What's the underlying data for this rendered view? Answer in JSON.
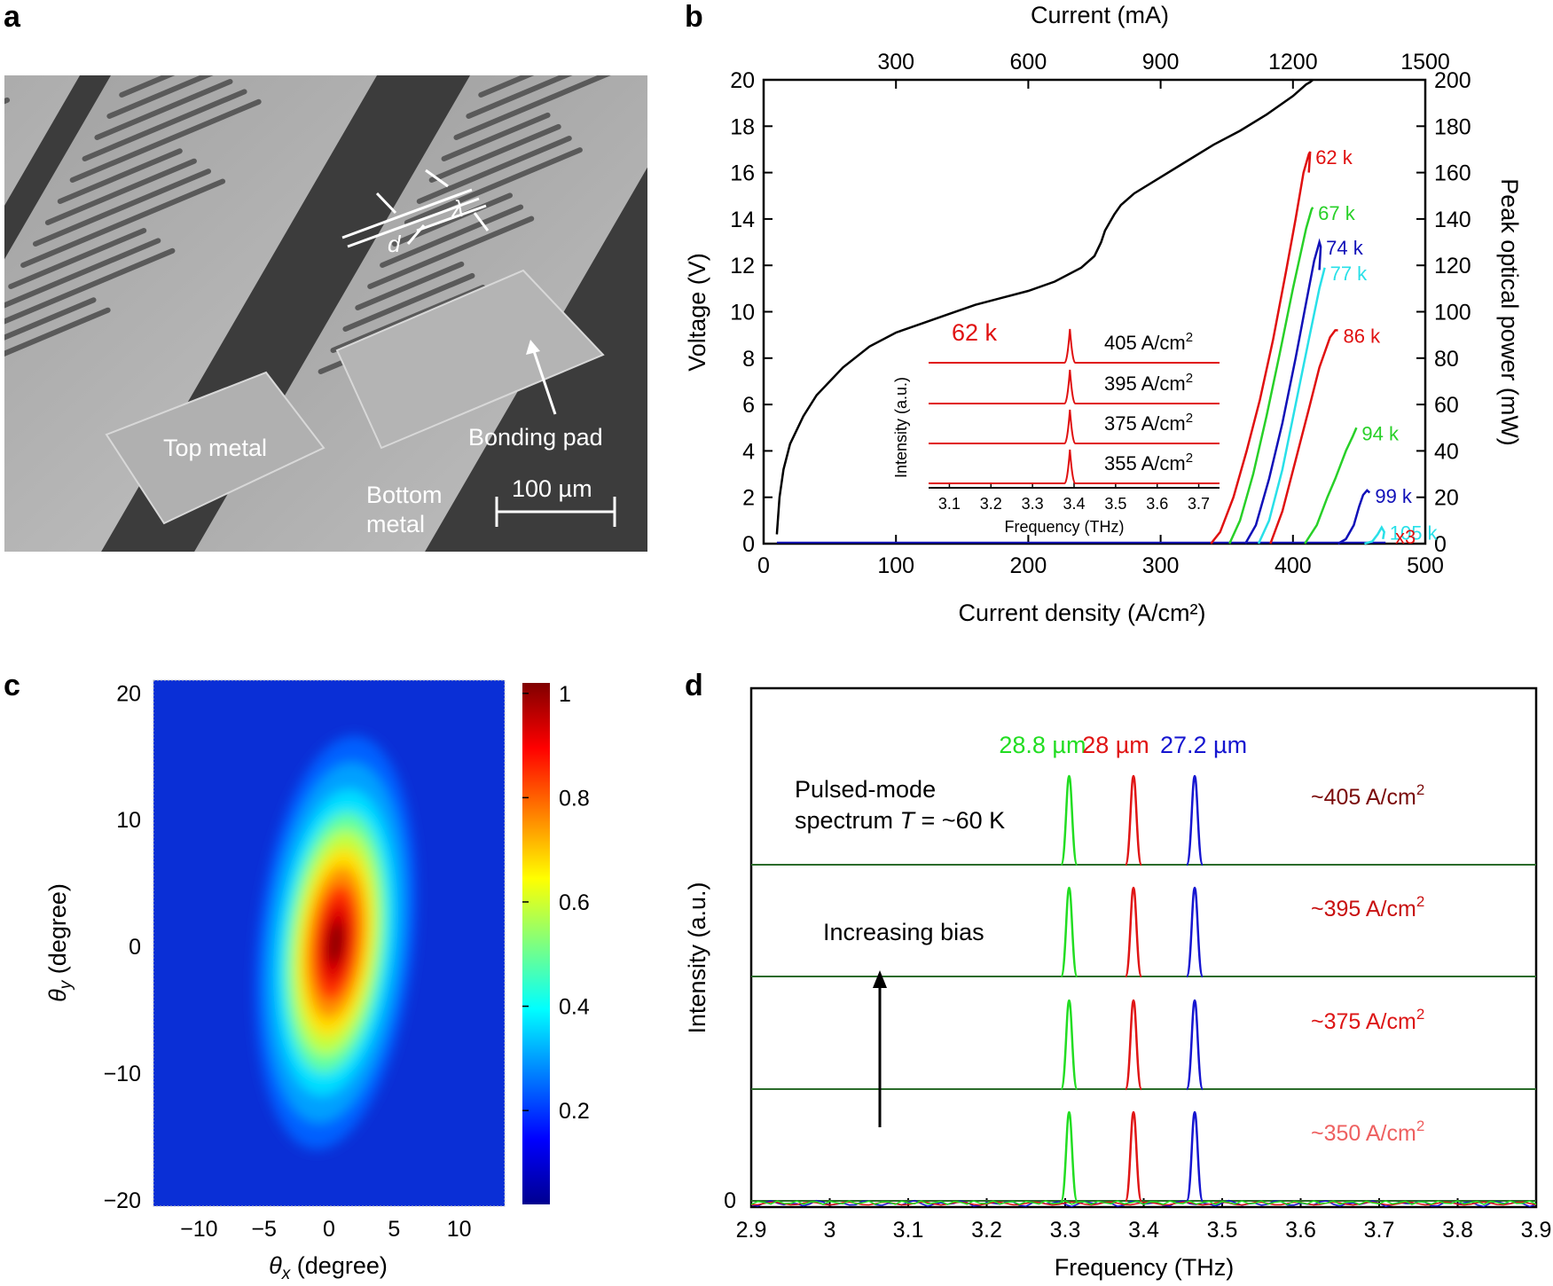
{
  "panels": {
    "a": {
      "label": "a"
    },
    "b": {
      "label": "b"
    },
    "c": {
      "label": "c"
    },
    "d": {
      "label": "d"
    }
  },
  "sem": {
    "top_metal": "Top metal",
    "bonding_pad": "Bonding pad",
    "bottom_metal_1": "Bottom",
    "bottom_metal_2": "metal",
    "scale_bar": "100 µm",
    "d_label": "d",
    "lambda_label": "λ",
    "colors": {
      "bg_dark": "#3a3a3a",
      "surface": "#b8b8b8",
      "pad": "#a9a9a9"
    }
  },
  "chart_data": [
    {
      "panel": "b",
      "type": "line",
      "xlabel": "Current density (A/cm²)",
      "top_xlabel": "Current (mA)",
      "ylabel": "Voltage (V)",
      "y2label": "Peak optical power (mW)",
      "xlim": [
        0,
        500
      ],
      "ylim": [
        0,
        20
      ],
      "y2lim": [
        0,
        200
      ],
      "top_xlim": [
        0,
        1500
      ],
      "x_ticks": [
        "0",
        "100",
        "200",
        "300",
        "400",
        "500"
      ],
      "y_ticks": [
        "0",
        "2",
        "4",
        "6",
        "8",
        "10",
        "12",
        "14",
        "16",
        "18",
        "20"
      ],
      "y2_ticks": [
        "0",
        "20",
        "40",
        "60",
        "80",
        "100",
        "120",
        "140",
        "160",
        "180",
        "200"
      ],
      "top_ticks": [
        "300",
        "600",
        "900",
        "1200",
        "1500"
      ],
      "multiplier_note": "x3",
      "iv_curve": {
        "x": [
          10,
          12,
          15,
          20,
          30,
          40,
          60,
          80,
          100,
          120,
          140,
          160,
          180,
          200,
          220,
          240,
          250,
          255,
          258,
          262,
          265,
          270,
          280,
          300,
          320,
          340,
          360,
          380,
          400,
          410,
          413,
          415
        ],
        "y": [
          0.4,
          2.0,
          3.2,
          4.3,
          5.5,
          6.4,
          7.6,
          8.5,
          9.1,
          9.5,
          9.9,
          10.3,
          10.6,
          10.9,
          11.3,
          11.9,
          12.4,
          13.0,
          13.5,
          13.9,
          14.2,
          14.6,
          15.1,
          15.8,
          16.5,
          17.2,
          17.8,
          18.5,
          19.3,
          19.8,
          19.9,
          20.0
        ]
      },
      "series": [
        {
          "name": "62 k",
          "color": "#e01010",
          "x": [
            338,
            345,
            355,
            365,
            375,
            385,
            395,
            402,
            408,
            412,
            413,
            412
          ],
          "y": [
            0,
            5,
            20,
            40,
            62,
            88,
            118,
            140,
            160,
            168,
            169,
            160
          ]
        },
        {
          "name": "67 k",
          "color": "#28d028",
          "x": [
            352,
            360,
            370,
            380,
            390,
            400,
            410,
            414,
            415
          ],
          "y": [
            0,
            10,
            30,
            55,
            82,
            110,
            136,
            144,
            145
          ]
        },
        {
          "name": "74 k",
          "color": "#1010b8",
          "x": [
            364,
            372,
            382,
            392,
            402,
            410,
            416,
            420,
            421,
            420
          ],
          "y": [
            0,
            8,
            28,
            52,
            80,
            104,
            122,
            130,
            128,
            118
          ]
        },
        {
          "name": "77 k",
          "color": "#28e0e8",
          "x": [
            374,
            382,
            392,
            402,
            412,
            420,
            424
          ],
          "y": [
            0,
            10,
            32,
            60,
            88,
            110,
            119
          ]
        },
        {
          "name": "86 k",
          "color": "#e01010",
          "x": [
            383,
            392,
            402,
            412,
            420,
            428,
            432,
            434
          ],
          "y": [
            0,
            14,
            36,
            58,
            76,
            89,
            92,
            92
          ]
        },
        {
          "name": "94 k",
          "color": "#28d028",
          "x": [
            409,
            418,
            426,
            432,
            440,
            445,
            448
          ],
          "y": [
            0,
            8,
            20,
            28,
            40,
            46,
            50
          ]
        },
        {
          "name": "99 k",
          "color": "#1010b8",
          "x": [
            434,
            440,
            446,
            450,
            453,
            456,
            458
          ],
          "y": [
            0,
            2,
            8,
            16,
            21,
            23,
            22
          ]
        },
        {
          "name": "105 k",
          "color": "#28e0e8",
          "x": [
            454,
            460,
            464,
            467,
            469,
            468
          ],
          "y": [
            0,
            1,
            4,
            7,
            5,
            2
          ]
        }
      ],
      "inset": {
        "temperature_label": "62 k",
        "ylabel": "Intensity (a.u.)",
        "xlabel": "Frequency (THz)",
        "xlim": [
          3.05,
          3.75
        ],
        "x_ticks": [
          "3.1",
          "3.2",
          "3.3",
          "3.4",
          "3.5",
          "3.6",
          "3.7"
        ],
        "peak_x": 3.39,
        "traces": [
          {
            "label": "405 A/cm",
            "sup": "2"
          },
          {
            "label": "395 A/cm",
            "sup": "2"
          },
          {
            "label": "375 A/cm",
            "sup": "2"
          },
          {
            "label": "355 A/cm",
            "sup": "2"
          }
        ]
      }
    },
    {
      "panel": "c",
      "type": "heatmap",
      "xlabel_sym": "θ",
      "xlabel_sub": "x",
      "xlabel_rest": " (degree)",
      "ylabel_sym": "θ",
      "ylabel_sub": "y",
      "ylabel_rest": " (degree)",
      "xlim": [
        -13.5,
        13.5
      ],
      "ylim": [
        -20.5,
        21
      ],
      "x_ticks": [
        "−10",
        "−5",
        "0",
        "5",
        "10"
      ],
      "y_ticks": [
        "−20",
        "−10",
        "0",
        "10",
        "20"
      ],
      "colorbar_ticks": [
        "0.2",
        "0.4",
        "0.6",
        "0.8",
        "1"
      ],
      "colorbar_range": [
        0.02,
        1.02
      ],
      "beam": {
        "center_x": 0.5,
        "center_y": 0.3,
        "sigma_major": 11.5,
        "sigma_minor": 2.6,
        "tilt_deg": 6,
        "peak": 1.0
      }
    },
    {
      "panel": "d",
      "type": "line",
      "xlabel": "Frequency (THz)",
      "ylabel": "Intensity (a.u.)",
      "xlim": [
        2.9,
        3.9
      ],
      "x_ticks": [
        "2.9",
        "3",
        "3.1",
        "3.2",
        "3.3",
        "3.4",
        "3.5",
        "3.6",
        "3.7",
        "3.8",
        "3.9"
      ],
      "zero_label": "0",
      "wavelengths": [
        {
          "label": "28.8 µm",
          "freq": 3.305,
          "color": "#22dd22"
        },
        {
          "label": "28 µm",
          "freq": 3.387,
          "color": "#e01515"
        },
        {
          "label": "27.2 µm",
          "freq": 3.465,
          "color": "#1515d0"
        }
      ],
      "title_line1": "Pulsed-mode",
      "title_line2a": "spectrum ",
      "title_T": "T",
      "title_line2b": " = ~60 K",
      "annotation": "Increasing bias",
      "traces": [
        {
          "label": "~405 A/cm",
          "sup": "2",
          "color": "#7a0a0a"
        },
        {
          "label": "~395 A/cm",
          "sup": "2",
          "color": "#c81010"
        },
        {
          "label": "~375 A/cm",
          "sup": "2",
          "color": "#dd1515"
        },
        {
          "label": "~350 A/cm",
          "sup": "2",
          "color": "#ee6060"
        }
      ]
    }
  ]
}
